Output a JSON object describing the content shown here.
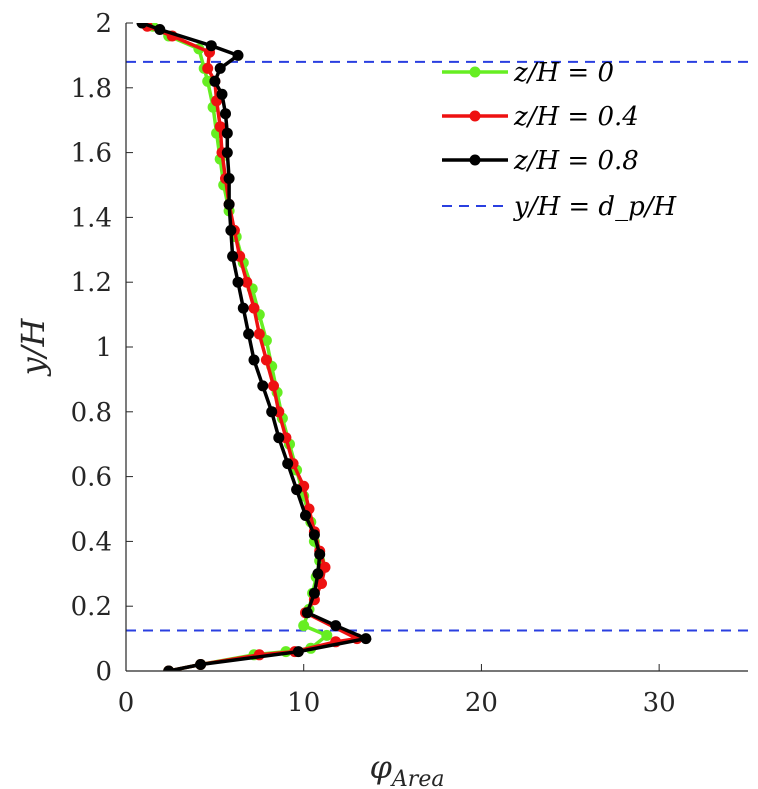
{
  "chart_data": {
    "type": "line",
    "title": "",
    "xlabel": "φ_Area",
    "xlabel_parts": {
      "main": "φ",
      "sub": "Area"
    },
    "ylabel": "y/H",
    "xlim": [
      0,
      35
    ],
    "ylim": [
      0,
      2
    ],
    "xticks": [
      0,
      10,
      20,
      30
    ],
    "xtick_labels": [
      "0",
      "10",
      "20",
      "30"
    ],
    "yticks": [
      0,
      0.2,
      0.4,
      0.6,
      0.8,
      1,
      1.2,
      1.4,
      1.6,
      1.8,
      2
    ],
    "ytick_labels": [
      "0",
      "0.2",
      "0.4",
      "0.6",
      "0.8",
      "1",
      "1.2",
      "1.4",
      "1.6",
      "1.8",
      "2"
    ],
    "grid": false,
    "legend_position": "top-right",
    "series": [
      {
        "name": "z/H = 0",
        "color": "#66ee22",
        "points": [
          [
            2.4,
            0.0
          ],
          [
            4.2,
            0.02
          ],
          [
            7.2,
            0.05
          ],
          [
            9.0,
            0.06
          ],
          [
            10.4,
            0.07
          ],
          [
            11.3,
            0.11
          ],
          [
            10.0,
            0.14
          ],
          [
            10.3,
            0.19
          ],
          [
            10.5,
            0.24
          ],
          [
            10.7,
            0.29
          ],
          [
            10.9,
            0.34
          ],
          [
            10.6,
            0.4
          ],
          [
            10.4,
            0.46
          ],
          [
            10.0,
            0.54
          ],
          [
            9.6,
            0.62
          ],
          [
            9.2,
            0.7
          ],
          [
            8.8,
            0.78
          ],
          [
            8.5,
            0.86
          ],
          [
            8.2,
            0.94
          ],
          [
            7.9,
            1.02
          ],
          [
            7.5,
            1.1
          ],
          [
            7.1,
            1.18
          ],
          [
            6.6,
            1.26
          ],
          [
            6.2,
            1.34
          ],
          [
            5.8,
            1.42
          ],
          [
            5.5,
            1.5
          ],
          [
            5.3,
            1.58
          ],
          [
            5.1,
            1.66
          ],
          [
            4.9,
            1.74
          ],
          [
            4.6,
            1.82
          ],
          [
            4.4,
            1.86
          ],
          [
            4.1,
            1.92
          ],
          [
            2.4,
            1.96
          ],
          [
            1.5,
            1.99
          ]
        ]
      },
      {
        "name": "z/H = 0.4",
        "color": "#ee1111",
        "points": [
          [
            2.4,
            0.0
          ],
          [
            4.2,
            0.02
          ],
          [
            7.5,
            0.05
          ],
          [
            9.5,
            0.06
          ],
          [
            11.8,
            0.09
          ],
          [
            13.0,
            0.1
          ],
          [
            10.1,
            0.18
          ],
          [
            10.6,
            0.22
          ],
          [
            11.0,
            0.27
          ],
          [
            11.2,
            0.32
          ],
          [
            10.9,
            0.37
          ],
          [
            10.6,
            0.43
          ],
          [
            10.3,
            0.5
          ],
          [
            10.0,
            0.57
          ],
          [
            9.4,
            0.64
          ],
          [
            9.0,
            0.72
          ],
          [
            8.6,
            0.8
          ],
          [
            8.3,
            0.88
          ],
          [
            7.9,
            0.96
          ],
          [
            7.5,
            1.04
          ],
          [
            7.2,
            1.12
          ],
          [
            6.8,
            1.2
          ],
          [
            6.4,
            1.28
          ],
          [
            6.1,
            1.36
          ],
          [
            5.8,
            1.44
          ],
          [
            5.6,
            1.52
          ],
          [
            5.4,
            1.6
          ],
          [
            5.3,
            1.68
          ],
          [
            5.1,
            1.76
          ],
          [
            5.0,
            1.82
          ],
          [
            4.6,
            1.86
          ],
          [
            4.7,
            1.91
          ],
          [
            2.6,
            1.96
          ],
          [
            1.2,
            1.99
          ]
        ]
      },
      {
        "name": "z/H = 0.8",
        "color": "#000000",
        "points": [
          [
            2.4,
            0.0
          ],
          [
            4.2,
            0.02
          ],
          [
            9.7,
            0.06
          ],
          [
            13.5,
            0.1
          ],
          [
            11.8,
            0.14
          ],
          [
            10.2,
            0.18
          ],
          [
            10.6,
            0.24
          ],
          [
            10.8,
            0.3
          ],
          [
            10.9,
            0.36
          ],
          [
            10.6,
            0.42
          ],
          [
            10.1,
            0.48
          ],
          [
            9.6,
            0.56
          ],
          [
            9.1,
            0.64
          ],
          [
            8.6,
            0.72
          ],
          [
            8.2,
            0.8
          ],
          [
            7.7,
            0.88
          ],
          [
            7.2,
            0.96
          ],
          [
            6.9,
            1.04
          ],
          [
            6.6,
            1.12
          ],
          [
            6.3,
            1.2
          ],
          [
            6.0,
            1.28
          ],
          [
            5.9,
            1.36
          ],
          [
            5.8,
            1.44
          ],
          [
            5.8,
            1.52
          ],
          [
            5.7,
            1.6
          ],
          [
            5.7,
            1.66
          ],
          [
            5.6,
            1.72
          ],
          [
            5.4,
            1.78
          ],
          [
            5.0,
            1.82
          ],
          [
            5.3,
            1.86
          ],
          [
            6.3,
            1.9
          ],
          [
            4.8,
            1.93
          ],
          [
            1.9,
            1.98
          ],
          [
            0.9,
            2.0
          ]
        ]
      }
    ],
    "reference_lines": [
      {
        "name": "y/H = d_p/H",
        "color": "#2a3fe0",
        "y": 1.88
      },
      {
        "y": 0.125,
        "color": "#2a3fe0"
      }
    ],
    "legend": [
      {
        "label": "z/H = 0",
        "color": "#66ee22",
        "style": "line-marker"
      },
      {
        "label": "z/H = 0.4",
        "color": "#ee1111",
        "style": "line-marker"
      },
      {
        "label": "z/H = 0.8",
        "color": "#000000",
        "style": "line-marker"
      },
      {
        "label": "y/H = d_p/H",
        "color": "#2a3fe0",
        "style": "dashed"
      }
    ]
  }
}
